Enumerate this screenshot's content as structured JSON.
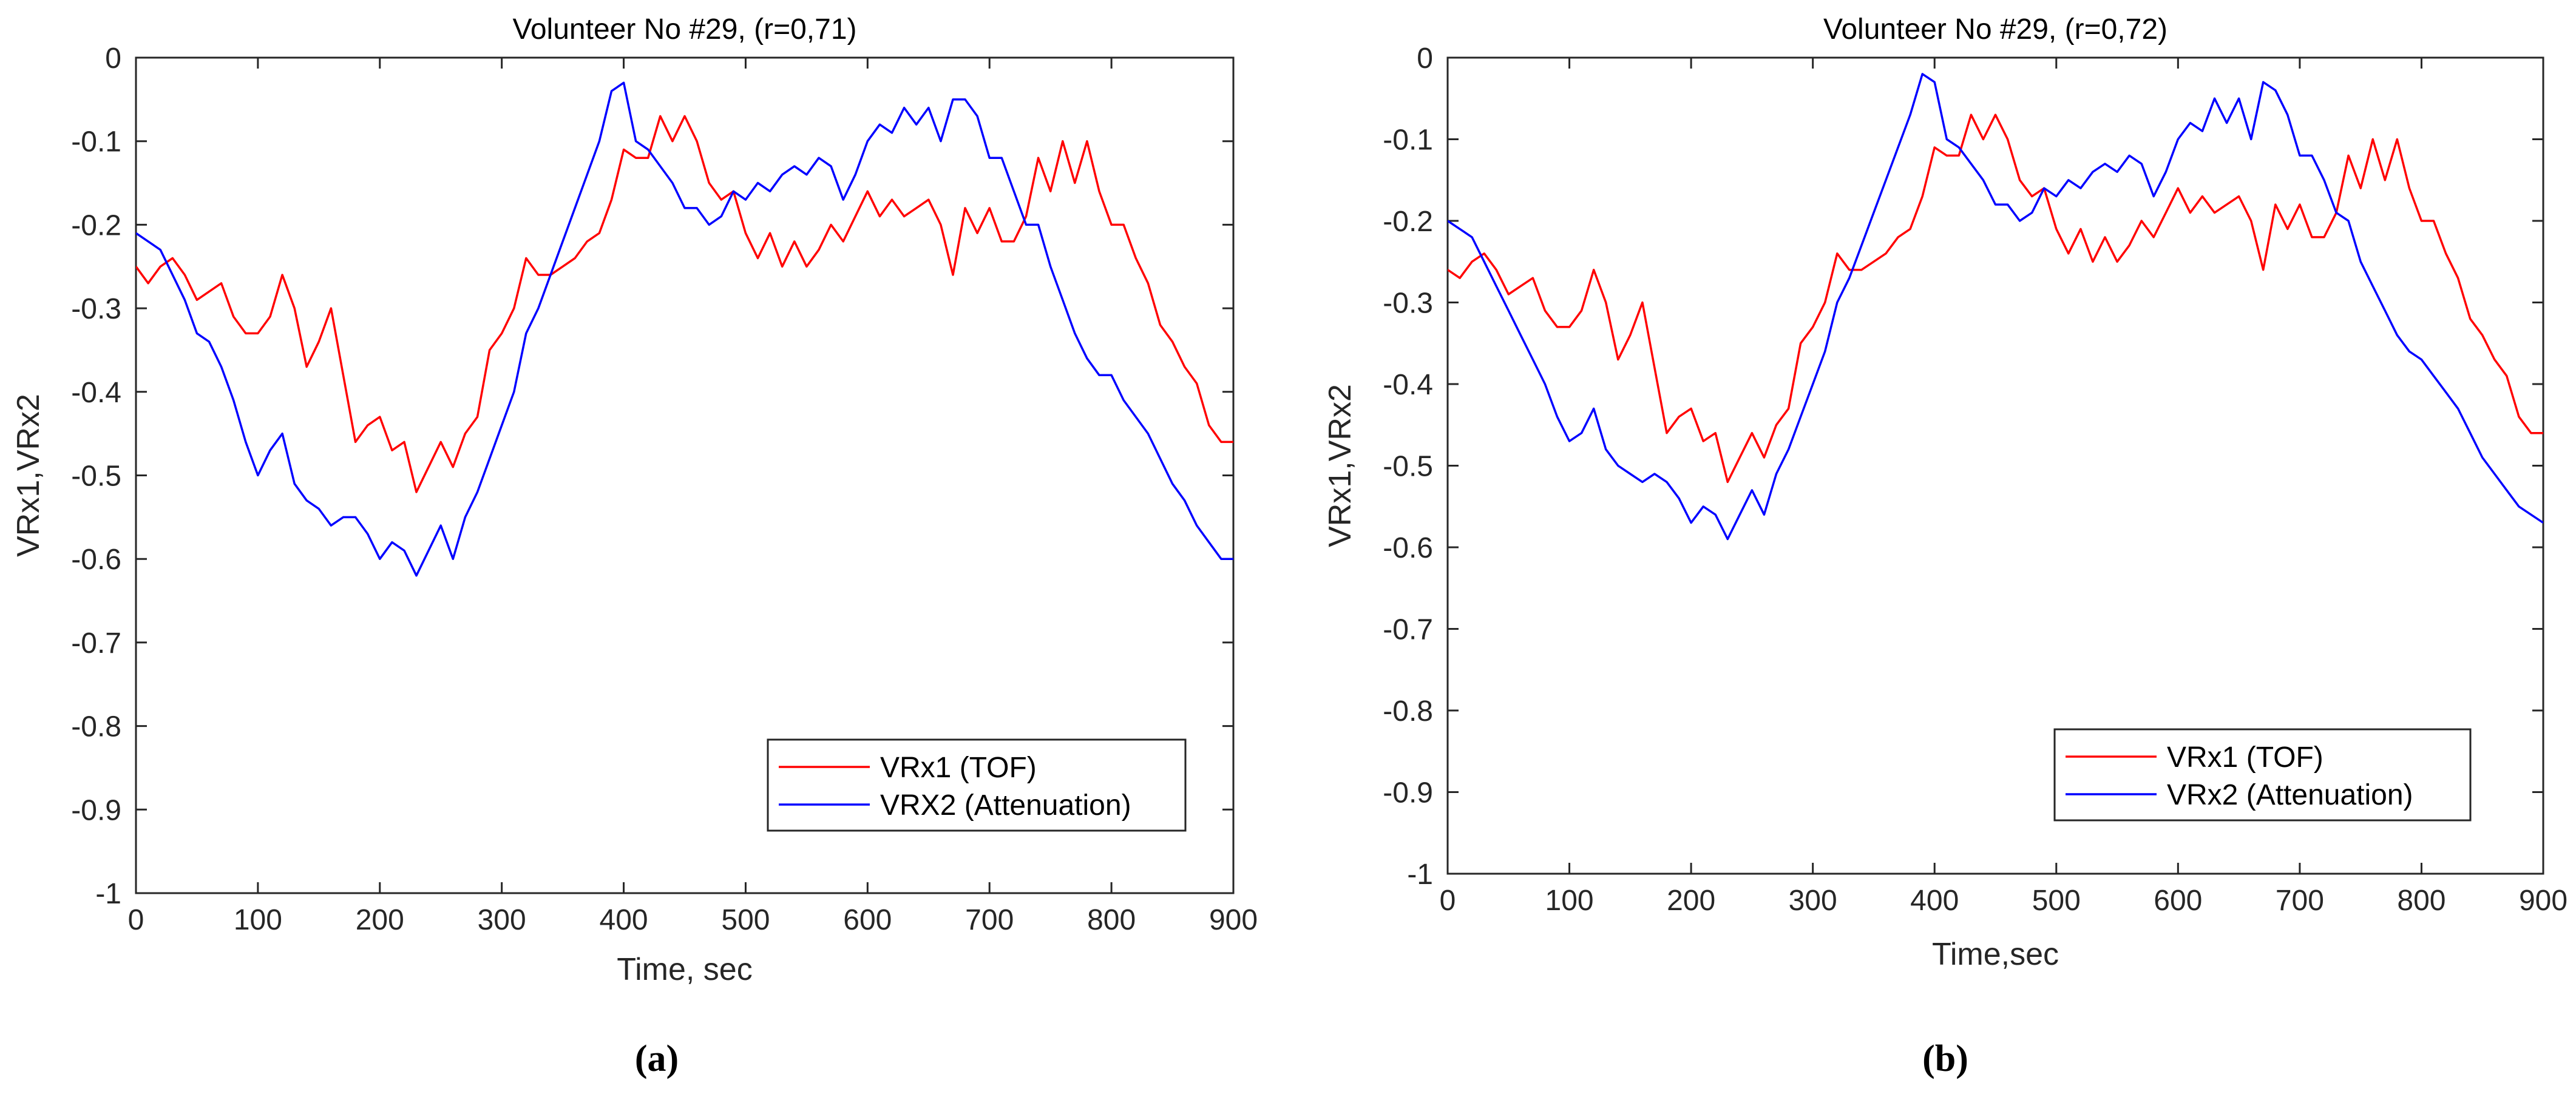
{
  "chart_data": [
    {
      "type": "line",
      "title": "Volunteer No #29,  (r=0,71)",
      "xlabel": "Time, sec",
      "ylabel": "VRx1,VRx2",
      "caption": "(a)",
      "xlim": [
        0,
        900
      ],
      "ylim": [
        -1,
        0
      ],
      "xticks": [
        0,
        100,
        200,
        300,
        400,
        500,
        600,
        700,
        800,
        900
      ],
      "yticks": [
        0,
        -0.1,
        -0.2,
        -0.3,
        -0.4,
        -0.5,
        -0.6,
        -0.7,
        -0.8,
        -0.9,
        -1
      ],
      "ytick_labels": [
        "0",
        "-0.1",
        "-0.2",
        "-0.3",
        "-0.4",
        "-0.5",
        "-0.6",
        "-0.7",
        "-0.8",
        "-0.9",
        "-1"
      ],
      "legend_position": "bottom-right",
      "series": [
        {
          "name": "VRx1 (TOF)",
          "color": "#ff0000",
          "x": [
            0,
            10,
            20,
            30,
            40,
            50,
            60,
            70,
            80,
            90,
            100,
            110,
            120,
            130,
            140,
            150,
            160,
            170,
            180,
            190,
            200,
            210,
            220,
            230,
            240,
            250,
            260,
            270,
            280,
            290,
            300,
            310,
            320,
            330,
            340,
            350,
            360,
            370,
            380,
            390,
            400,
            410,
            420,
            430,
            440,
            450,
            460,
            470,
            480,
            490,
            500,
            510,
            520,
            530,
            540,
            550,
            560,
            570,
            580,
            590,
            600,
            610,
            620,
            630,
            640,
            650,
            660,
            670,
            680,
            690,
            700,
            710,
            720,
            730,
            740,
            750,
            760,
            770,
            780,
            790,
            800,
            810,
            820,
            830,
            840,
            850,
            860,
            870,
            880,
            890,
            900
          ],
          "values": [
            -0.25,
            -0.27,
            -0.25,
            -0.24,
            -0.26,
            -0.29,
            -0.28,
            -0.27,
            -0.31,
            -0.33,
            -0.33,
            -0.31,
            -0.26,
            -0.3,
            -0.37,
            -0.34,
            -0.3,
            -0.38,
            -0.46,
            -0.44,
            -0.43,
            -0.47,
            -0.46,
            -0.52,
            -0.49,
            -0.46,
            -0.49,
            -0.45,
            -0.43,
            -0.35,
            -0.33,
            -0.3,
            -0.24,
            -0.26,
            -0.26,
            -0.25,
            -0.24,
            -0.22,
            -0.21,
            -0.17,
            -0.11,
            -0.12,
            -0.12,
            -0.07,
            -0.1,
            -0.07,
            -0.1,
            -0.15,
            -0.17,
            -0.16,
            -0.21,
            -0.24,
            -0.21,
            -0.25,
            -0.22,
            -0.25,
            -0.23,
            -0.2,
            -0.22,
            -0.19,
            -0.16,
            -0.19,
            -0.17,
            -0.19,
            -0.18,
            -0.17,
            -0.2,
            -0.26,
            -0.18,
            -0.21,
            -0.18,
            -0.22,
            -0.22,
            -0.19,
            -0.12,
            -0.16,
            -0.1,
            -0.15,
            -0.1,
            -0.16,
            -0.2,
            -0.2,
            -0.24,
            -0.27,
            -0.32,
            -0.34,
            -0.37,
            -0.39,
            -0.44,
            -0.46,
            -0.46
          ]
        },
        {
          "name": "VRX2 (Attenuation)",
          "color": "#0000ff",
          "x": [
            0,
            10,
            20,
            30,
            40,
            50,
            60,
            70,
            80,
            90,
            100,
            110,
            120,
            130,
            140,
            150,
            160,
            170,
            180,
            190,
            200,
            210,
            220,
            230,
            240,
            250,
            260,
            270,
            280,
            290,
            300,
            310,
            320,
            330,
            340,
            350,
            360,
            370,
            380,
            390,
            400,
            410,
            420,
            430,
            440,
            450,
            460,
            470,
            480,
            490,
            500,
            510,
            520,
            530,
            540,
            550,
            560,
            570,
            580,
            590,
            600,
            610,
            620,
            630,
            640,
            650,
            660,
            670,
            680,
            690,
            700,
            710,
            720,
            730,
            740,
            750,
            760,
            770,
            780,
            790,
            800,
            810,
            820,
            830,
            840,
            850,
            860,
            870,
            880,
            890,
            900
          ],
          "values": [
            -0.21,
            -0.22,
            -0.23,
            -0.26,
            -0.29,
            -0.33,
            -0.34,
            -0.37,
            -0.41,
            -0.46,
            -0.5,
            -0.47,
            -0.45,
            -0.51,
            -0.53,
            -0.54,
            -0.56,
            -0.55,
            -0.55,
            -0.57,
            -0.6,
            -0.58,
            -0.59,
            -0.62,
            -0.59,
            -0.56,
            -0.6,
            -0.55,
            -0.52,
            -0.48,
            -0.44,
            -0.4,
            -0.33,
            -0.3,
            -0.26,
            -0.22,
            -0.18,
            -0.14,
            -0.1,
            -0.04,
            -0.03,
            -0.1,
            -0.11,
            -0.13,
            -0.15,
            -0.18,
            -0.18,
            -0.2,
            -0.19,
            -0.16,
            -0.17,
            -0.15,
            -0.16,
            -0.14,
            -0.13,
            -0.14,
            -0.12,
            -0.13,
            -0.17,
            -0.14,
            -0.1,
            -0.08,
            -0.09,
            -0.06,
            -0.08,
            -0.06,
            -0.1,
            -0.05,
            -0.05,
            -0.07,
            -0.12,
            -0.12,
            -0.16,
            -0.2,
            -0.2,
            -0.25,
            -0.29,
            -0.33,
            -0.36,
            -0.38,
            -0.38,
            -0.41,
            -0.43,
            -0.45,
            -0.48,
            -0.51,
            -0.53,
            -0.56,
            -0.58,
            -0.6,
            -0.6
          ]
        }
      ]
    },
    {
      "type": "line",
      "title": "Volunteer No #29,  (r=0,72)",
      "xlabel": "Time,sec",
      "ylabel": "VRx1,VRx2",
      "caption": "(b)",
      "xlim": [
        0,
        900
      ],
      "ylim": [
        -1,
        0
      ],
      "xticks": [
        0,
        100,
        200,
        300,
        400,
        500,
        600,
        700,
        800,
        900
      ],
      "yticks": [
        0,
        -0.1,
        -0.2,
        -0.3,
        -0.4,
        -0.5,
        -0.6,
        -0.7,
        -0.8,
        -0.9,
        -1
      ],
      "ytick_labels": [
        "0",
        "-0.1",
        "-0.2",
        "-0.3",
        "-0.4",
        "-0.5",
        "-0.6",
        "-0.7",
        "-0.8",
        "-0.9",
        "-1"
      ],
      "legend_position": "bottom-right",
      "series": [
        {
          "name": "VRx1 (TOF)",
          "color": "#ff0000",
          "x": [
            0,
            10,
            20,
            30,
            40,
            50,
            60,
            70,
            80,
            90,
            100,
            110,
            120,
            130,
            140,
            150,
            160,
            170,
            180,
            190,
            200,
            210,
            220,
            230,
            240,
            250,
            260,
            270,
            280,
            290,
            300,
            310,
            320,
            330,
            340,
            350,
            360,
            370,
            380,
            390,
            400,
            410,
            420,
            430,
            440,
            450,
            460,
            470,
            480,
            490,
            500,
            510,
            520,
            530,
            540,
            550,
            560,
            570,
            580,
            590,
            600,
            610,
            620,
            630,
            640,
            650,
            660,
            670,
            680,
            690,
            700,
            710,
            720,
            730,
            740,
            750,
            760,
            770,
            780,
            790,
            800,
            810,
            820,
            830,
            840,
            850,
            860,
            870,
            880,
            890,
            900
          ],
          "values": [
            -0.26,
            -0.27,
            -0.25,
            -0.24,
            -0.26,
            -0.29,
            -0.28,
            -0.27,
            -0.31,
            -0.33,
            -0.33,
            -0.31,
            -0.26,
            -0.3,
            -0.37,
            -0.34,
            -0.3,
            -0.38,
            -0.46,
            -0.44,
            -0.43,
            -0.47,
            -0.46,
            -0.52,
            -0.49,
            -0.46,
            -0.49,
            -0.45,
            -0.43,
            -0.35,
            -0.33,
            -0.3,
            -0.24,
            -0.26,
            -0.26,
            -0.25,
            -0.24,
            -0.22,
            -0.21,
            -0.17,
            -0.11,
            -0.12,
            -0.12,
            -0.07,
            -0.1,
            -0.07,
            -0.1,
            -0.15,
            -0.17,
            -0.16,
            -0.21,
            -0.24,
            -0.21,
            -0.25,
            -0.22,
            -0.25,
            -0.23,
            -0.2,
            -0.22,
            -0.19,
            -0.16,
            -0.19,
            -0.17,
            -0.19,
            -0.18,
            -0.17,
            -0.2,
            -0.26,
            -0.18,
            -0.21,
            -0.18,
            -0.22,
            -0.22,
            -0.19,
            -0.12,
            -0.16,
            -0.1,
            -0.15,
            -0.1,
            -0.16,
            -0.2,
            -0.2,
            -0.24,
            -0.27,
            -0.32,
            -0.34,
            -0.37,
            -0.39,
            -0.44,
            -0.46,
            -0.46
          ]
        },
        {
          "name": "VRx2 (Attenuation)",
          "color": "#0000ff",
          "x": [
            0,
            10,
            20,
            30,
            40,
            50,
            60,
            70,
            80,
            90,
            100,
            110,
            120,
            130,
            140,
            150,
            160,
            170,
            180,
            190,
            200,
            210,
            220,
            230,
            240,
            250,
            260,
            270,
            280,
            290,
            300,
            310,
            320,
            330,
            340,
            350,
            360,
            370,
            380,
            390,
            400,
            410,
            420,
            430,
            440,
            450,
            460,
            470,
            480,
            490,
            500,
            510,
            520,
            530,
            540,
            550,
            560,
            570,
            580,
            590,
            600,
            610,
            620,
            630,
            640,
            650,
            660,
            670,
            680,
            690,
            700,
            710,
            720,
            730,
            740,
            750,
            760,
            770,
            780,
            790,
            800,
            810,
            820,
            830,
            840,
            850,
            860,
            870,
            880,
            890,
            900
          ],
          "values": [
            -0.2,
            -0.21,
            -0.22,
            -0.25,
            -0.28,
            -0.31,
            -0.34,
            -0.37,
            -0.4,
            -0.44,
            -0.47,
            -0.46,
            -0.43,
            -0.48,
            -0.5,
            -0.51,
            -0.52,
            -0.51,
            -0.52,
            -0.54,
            -0.57,
            -0.55,
            -0.56,
            -0.59,
            -0.56,
            -0.53,
            -0.56,
            -0.51,
            -0.48,
            -0.44,
            -0.4,
            -0.36,
            -0.3,
            -0.27,
            -0.23,
            -0.19,
            -0.15,
            -0.11,
            -0.07,
            -0.02,
            -0.03,
            -0.1,
            -0.11,
            -0.13,
            -0.15,
            -0.18,
            -0.18,
            -0.2,
            -0.19,
            -0.16,
            -0.17,
            -0.15,
            -0.16,
            -0.14,
            -0.13,
            -0.14,
            -0.12,
            -0.13,
            -0.17,
            -0.14,
            -0.1,
            -0.08,
            -0.09,
            -0.05,
            -0.08,
            -0.05,
            -0.1,
            -0.03,
            -0.04,
            -0.07,
            -0.12,
            -0.12,
            -0.15,
            -0.19,
            -0.2,
            -0.25,
            -0.28,
            -0.31,
            -0.34,
            -0.36,
            -0.37,
            -0.39,
            -0.41,
            -0.43,
            -0.46,
            -0.49,
            -0.51,
            -0.53,
            -0.55,
            -0.56,
            -0.57
          ]
        }
      ]
    }
  ]
}
